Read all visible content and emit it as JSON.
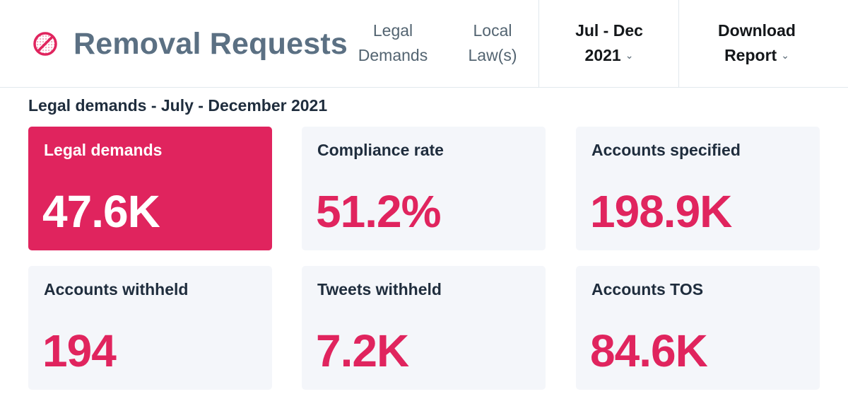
{
  "header": {
    "title": "Removal Requests",
    "brand_icon": "prohibited-icon",
    "accent_color": "#e0245e",
    "nav": [
      {
        "line1": "Legal",
        "line2": "Demands"
      },
      {
        "line1": "Local",
        "line2": "Law(s)"
      }
    ],
    "period": {
      "line1": "Jul - Dec",
      "line2": "2021"
    },
    "download": {
      "line1": "Download",
      "line2": "Report"
    },
    "chevron": "⌄"
  },
  "section": {
    "title": "Legal demands - July - December 2021"
  },
  "cards": [
    {
      "label": "Legal demands",
      "value": "47.6K",
      "selected": true
    },
    {
      "label": "Compliance rate",
      "value": "51.2%",
      "selected": false
    },
    {
      "label": "Accounts specified",
      "value": "198.9K",
      "selected": false
    },
    {
      "label": "Accounts withheld",
      "value": "194",
      "selected": false
    },
    {
      "label": "Tweets withheld",
      "value": "7.2K",
      "selected": false
    },
    {
      "label": "Accounts TOS",
      "value": "84.6K",
      "selected": false
    }
  ]
}
